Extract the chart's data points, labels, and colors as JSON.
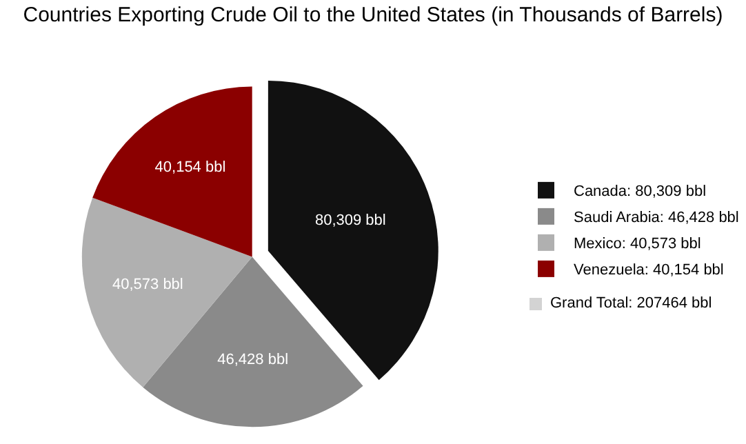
{
  "chart_data": {
    "type": "pie",
    "title": "Countries Exporting Crude Oil to the United States (in Thousands of Barrels)",
    "categories": [
      "Canada: 80,309 bbl",
      "Saudi Arabia: 46,428 bbl",
      "Mexico: 40,573 bbl",
      "Venezuela: 40,154 bbl"
    ],
    "values": [
      80309,
      46428,
      40573,
      40154
    ],
    "value_labels": [
      "80,309 bbl",
      "46,428 bbl",
      "40,573 bbl",
      "40,154 bbl"
    ],
    "colors": [
      "#111111",
      "#8a8a8a",
      "#b0b0b0",
      "#8b0000"
    ],
    "legend": "right",
    "annotations": [
      "Grand Total: 207464 bbl"
    ]
  }
}
